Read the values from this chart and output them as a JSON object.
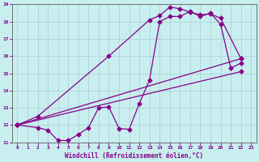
{
  "xlabel": "Windchill (Refroidissement éolien,°C)",
  "bg_color": "#c8eef0",
  "line_color": "#880088",
  "xlim": [
    -0.5,
    23.5
  ],
  "ylim": [
    11,
    19
  ],
  "xticks": [
    0,
    1,
    2,
    3,
    4,
    5,
    6,
    7,
    8,
    9,
    10,
    11,
    12,
    13,
    14,
    15,
    16,
    17,
    18,
    19,
    20,
    21,
    22,
    23
  ],
  "yticks": [
    11,
    12,
    13,
    14,
    15,
    16,
    17,
    18,
    19
  ],
  "curve1_x": [
    0,
    2,
    3,
    4,
    5,
    6,
    7,
    8,
    9,
    10,
    11,
    12,
    13,
    14,
    15,
    16,
    17,
    18,
    19,
    20,
    21,
    22
  ],
  "curve1_y": [
    12,
    11.85,
    11.7,
    11.1,
    11.1,
    11.45,
    11.85,
    13.0,
    13.05,
    11.8,
    11.75,
    13.25,
    14.6,
    18.0,
    18.3,
    18.3,
    18.6,
    18.3,
    18.5,
    17.85,
    15.3,
    15.6
  ],
  "curve2_x": [
    0,
    2,
    9,
    13,
    14,
    15,
    16,
    17,
    18,
    19,
    20,
    22
  ],
  "curve2_y": [
    12,
    12.5,
    16.0,
    18.1,
    18.35,
    18.85,
    18.75,
    18.55,
    18.4,
    18.45,
    18.2,
    15.85
  ],
  "line3_x": [
    0,
    22
  ],
  "line3_y": [
    12,
    15.85
  ],
  "line4_x": [
    0,
    22
  ],
  "line4_y": [
    12,
    15.1
  ]
}
